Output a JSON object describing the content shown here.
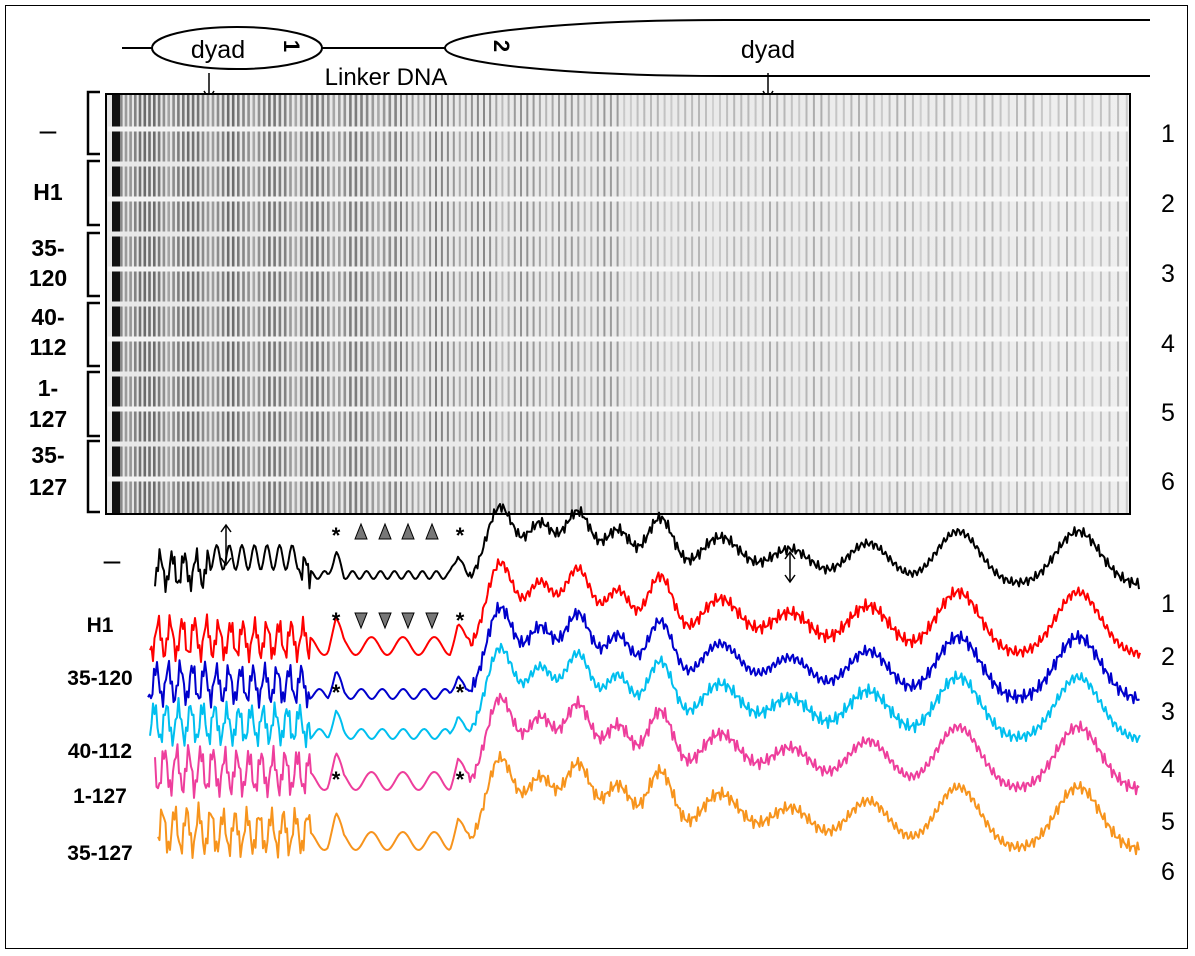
{
  "schematic": {
    "dyad_label_1": "dyad",
    "nucleosome_1_number": "1",
    "nucleosome_2_number": "2",
    "dyad_label_2": "dyad",
    "linker_label": "Linker DNA"
  },
  "gel": {
    "lane_groups": [
      {
        "label_lines": [
          "–"
        ],
        "number": "1"
      },
      {
        "label_lines": [
          "H1"
        ],
        "number": "2"
      },
      {
        "label_lines": [
          "35-",
          "120"
        ],
        "number": "3"
      },
      {
        "label_lines": [
          "40-",
          "112"
        ],
        "number": "4"
      },
      {
        "label_lines": [
          "1-",
          "127"
        ],
        "number": "5"
      },
      {
        "label_lines": [
          "35-",
          "127"
        ],
        "number": "6"
      }
    ]
  },
  "traces": [
    {
      "label": "–",
      "number": "1",
      "color": "#000000"
    },
    {
      "label": "H1",
      "number": "2",
      "color": "#ff0000"
    },
    {
      "label": "35-120",
      "number": "3",
      "color": "#0000cc"
    },
    {
      "label": "40-112",
      "number": "4",
      "color": "#00bfef"
    },
    {
      "label": "1-127",
      "number": "5",
      "color": "#ee3e9c"
    },
    {
      "label": "35-127",
      "number": "6",
      "color": "#f7941d"
    }
  ],
  "annotations": {
    "asterisk": "*",
    "arrow_icon": "double-headed-arrow-icon",
    "triangle_up_icon": "triangle-up-icon",
    "triangle_down_icon": "triangle-down-icon"
  }
}
